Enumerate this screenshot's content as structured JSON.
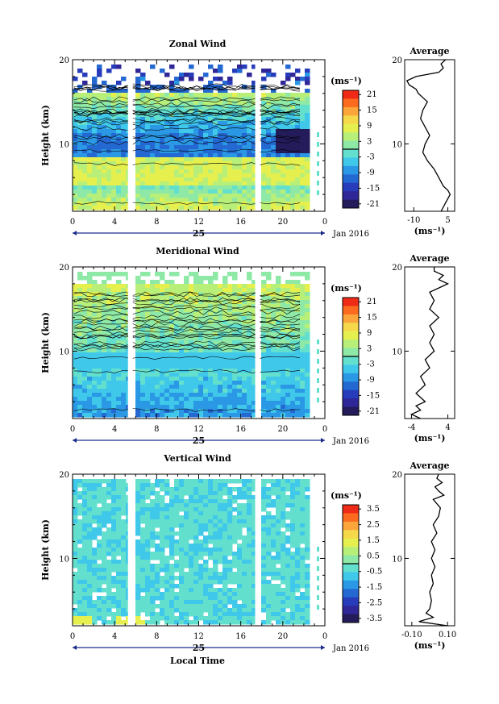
{
  "figure": {
    "x_axis_title": "Local Time",
    "date_label": "Jan 2016",
    "day_label": "25",
    "average_title": "Average",
    "unit_label": "(ms⁻¹)",
    "height_label": "Height (km)"
  },
  "chart_data": [
    {
      "type": "heatmap",
      "title": "Zonal Wind",
      "xlabel": "",
      "ylabel": "Height (km)",
      "x_ticks": [
        "0",
        "4",
        "8",
        "12",
        "16",
        "20",
        "0"
      ],
      "x_tick_values": [
        0,
        4,
        8,
        12,
        16,
        20,
        24
      ],
      "y_ticks": [
        "20",
        "10"
      ],
      "y_tick_values": [
        20,
        10
      ],
      "xlim": [
        0,
        24
      ],
      "ylim": [
        2,
        20
      ],
      "colorbar_unit": "(ms⁻¹)",
      "colorbar_ticks": [
        "21",
        "15",
        "9",
        "3",
        "-3",
        "-9",
        "-15",
        "-21"
      ],
      "colorbar_range": [
        -24,
        24
      ],
      "gaps_hours": [
        5.5,
        17.6
      ],
      "data_end_hour": 22.3,
      "profile": {
        "title": "Average",
        "x_ticks": [
          "-10",
          "5"
        ],
        "x_tick_values": [
          -10,
          5
        ],
        "xlim": [
          -14,
          8
        ],
        "ylim": [
          2,
          20
        ],
        "y_ticks": [
          "20",
          "10"
        ],
        "xlabel": "(ms⁻¹)",
        "height_km": [
          2.0,
          3.0,
          4.0,
          4.5,
          5.0,
          6.0,
          7.0,
          8.0,
          9.0,
          10.0,
          11.0,
          12.0,
          13.0,
          14.0,
          15.0,
          16.0,
          16.5,
          17.0,
          17.5,
          18.0,
          18.5,
          19.0,
          19.5,
          20.0
        ],
        "wind": [
          2,
          4,
          6,
          5,
          3,
          1,
          -1,
          -4,
          -6,
          -5,
          -3,
          -5,
          -7,
          -6,
          -4,
          -8,
          -9,
          -12,
          -13,
          -9,
          1,
          3,
          2,
          4
        ]
      }
    },
    {
      "type": "heatmap",
      "title": "Meridional Wind",
      "xlabel": "",
      "ylabel": "Height (km)",
      "x_ticks": [
        "0",
        "4",
        "8",
        "12",
        "16",
        "20",
        "0"
      ],
      "x_tick_values": [
        0,
        4,
        8,
        12,
        16,
        20,
        24
      ],
      "y_ticks": [
        "20",
        "10"
      ],
      "y_tick_values": [
        20,
        10
      ],
      "xlim": [
        0,
        24
      ],
      "ylim": [
        2,
        20
      ],
      "colorbar_unit": "(ms⁻¹)",
      "colorbar_ticks": [
        "21",
        "15",
        "9",
        "3",
        "-3",
        "-9",
        "-15",
        "-21"
      ],
      "colorbar_range": [
        -24,
        24
      ],
      "gaps_hours": [
        5.5,
        17.6
      ],
      "data_end_hour": 22.3,
      "profile": {
        "title": "Average",
        "x_ticks": [
          "-4",
          "4"
        ],
        "x_tick_values": [
          -4,
          4
        ],
        "xlim": [
          -5.5,
          5.5
        ],
        "ylim": [
          2,
          20
        ],
        "y_ticks": [
          "20",
          "10"
        ],
        "xlabel": "(ms⁻¹)",
        "height_km": [
          2.0,
          2.5,
          3.0,
          3.5,
          4.0,
          5.0,
          6.0,
          7.0,
          8.0,
          9.0,
          10.0,
          11.0,
          12.0,
          13.0,
          14.0,
          15.0,
          16.0,
          17.0,
          17.5,
          18.0,
          18.5,
          19.0,
          19.5,
          20.0
        ],
        "wind": [
          -2,
          -4,
          -2,
          -3,
          -1,
          -3,
          -1,
          -2,
          0,
          -1,
          1,
          0,
          1,
          0,
          2,
          0,
          1,
          0,
          2,
          4,
          2,
          3,
          1,
          1
        ]
      }
    },
    {
      "type": "heatmap",
      "title": "Vertical Wind",
      "xlabel": "Local Time",
      "ylabel": "Height (km)",
      "x_ticks": [
        "0",
        "4",
        "8",
        "12",
        "16",
        "20",
        "0"
      ],
      "x_tick_values": [
        0,
        4,
        8,
        12,
        16,
        20,
        24
      ],
      "y_ticks": [
        "20",
        "10"
      ],
      "y_tick_values": [
        20,
        10
      ],
      "xlim": [
        0,
        24
      ],
      "ylim": [
        2,
        20
      ],
      "colorbar_unit": "(ms⁻¹)",
      "colorbar_ticks": [
        "3.5",
        "2.5",
        "1.5",
        "0.5",
        "-0.5",
        "-1.5",
        "-2.5",
        "-3.5"
      ],
      "colorbar_range": [
        -4,
        4
      ],
      "gaps_hours": [
        5.5,
        17.6
      ],
      "data_end_hour": 22.3,
      "profile": {
        "title": "Average",
        "x_ticks": [
          "-0.10",
          "0.10"
        ],
        "x_tick_values": [
          -0.1,
          0.1
        ],
        "xlim": [
          -0.14,
          0.14
        ],
        "ylim": [
          2,
          20
        ],
        "y_ticks": [
          "20",
          "10"
        ],
        "xlabel": "(ms⁻¹)",
        "height_km": [
          2.0,
          2.5,
          3.0,
          3.5,
          4.0,
          5.0,
          6.0,
          7.0,
          8.0,
          9.0,
          10.0,
          11.0,
          12.0,
          13.0,
          14.0,
          15.0,
          16.0,
          17.0,
          17.5,
          18.0,
          18.5,
          19.0,
          19.5,
          20.0
        ],
        "wind": [
          0.1,
          -0.06,
          0.02,
          -0.02,
          0.0,
          0.01,
          0.0,
          0.02,
          0.01,
          0.03,
          0.01,
          0.03,
          0.01,
          0.04,
          0.02,
          0.05,
          0.06,
          0.02,
          0.08,
          0.05,
          0.03,
          0.07,
          0.04,
          0.05
        ]
      }
    }
  ]
}
